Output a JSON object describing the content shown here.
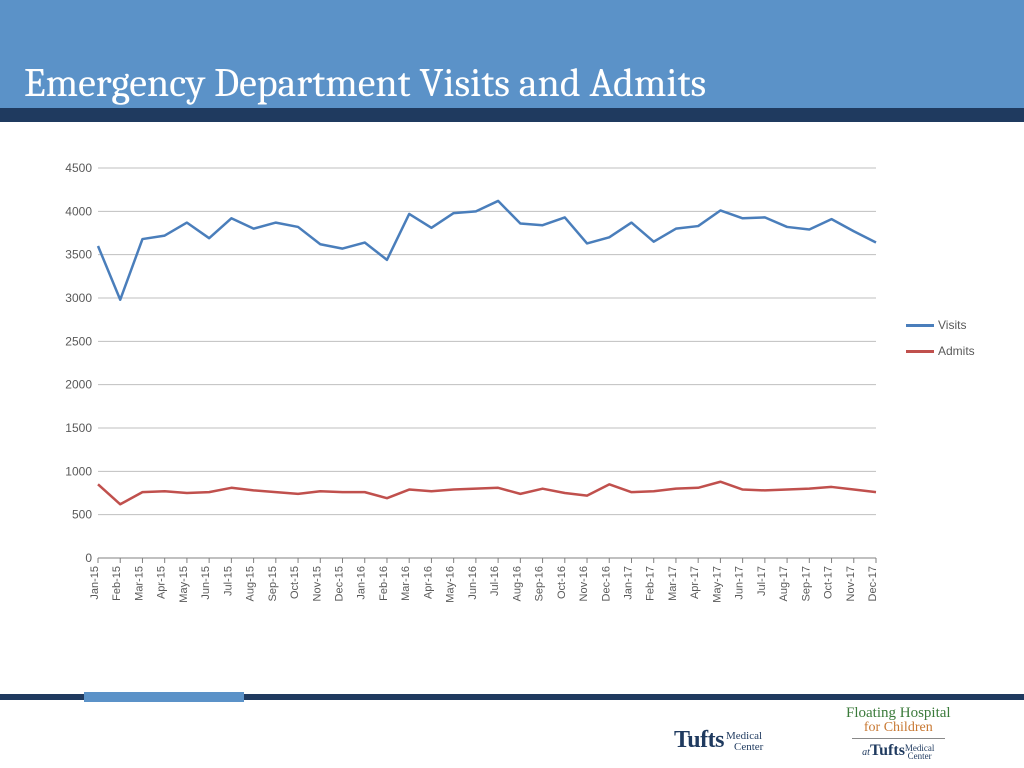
{
  "title": "Emergency Department Visits and Admits",
  "chart": {
    "type": "line",
    "ylim": [
      0,
      4500
    ],
    "ytick_step": 500,
    "background_color": "#ffffff",
    "grid_color": "#bfbfbf",
    "line_width": 2.5,
    "tick_fontsize": 12,
    "x_categories": [
      "Jan-15",
      "Feb-15",
      "Mar-15",
      "Apr-15",
      "May-15",
      "Jun-15",
      "Jul-15",
      "Aug-15",
      "Sep-15",
      "Oct-15",
      "Nov-15",
      "Dec-15",
      "Jan-16",
      "Feb-16",
      "Mar-16",
      "Apr-16",
      "May-16",
      "Jun-16",
      "Jul-16",
      "Aug-16",
      "Sep-16",
      "Oct-16",
      "Nov-16",
      "Dec-16",
      "Jan-17",
      "Feb-17",
      "Mar-17",
      "Apr-17",
      "May-17",
      "Jun-17",
      "Jul-17",
      "Aug-17",
      "Sep-17",
      "Oct-17",
      "Nov-17",
      "Dec-17"
    ],
    "series": [
      {
        "name": "Visits",
        "color": "#4a7ebb",
        "values": [
          3600,
          2980,
          3680,
          3720,
          3870,
          3690,
          3920,
          3800,
          3870,
          3820,
          3620,
          3570,
          3640,
          3440,
          3970,
          3810,
          3980,
          4000,
          4120,
          3860,
          3840,
          3930,
          3630,
          3700,
          3870,
          3650,
          3800,
          3830,
          4010,
          3920,
          3930,
          3820,
          3790,
          3910,
          3770,
          3640
        ]
      },
      {
        "name": "Admits",
        "color": "#c0504d",
        "values": [
          850,
          620,
          760,
          770,
          750,
          760,
          810,
          780,
          760,
          740,
          770,
          760,
          760,
          690,
          790,
          770,
          790,
          800,
          810,
          740,
          800,
          750,
          720,
          850,
          760,
          770,
          800,
          810,
          880,
          790,
          780,
          790,
          800,
          820,
          790,
          760
        ]
      }
    ]
  },
  "legend": {
    "items": [
      {
        "label": "Visits",
        "color": "#4a7ebb"
      },
      {
        "label": "Admits",
        "color": "#c0504d"
      }
    ]
  },
  "footer": {
    "logo1_big": "Tufts",
    "logo1_line1": "Medical",
    "logo1_line2": "Center",
    "logo2_line1": "Floating Hospital",
    "logo2_line2": "for Children",
    "logo2_at": "at",
    "logo2_tufts": "Tufts",
    "logo2_mc1": "Medical",
    "logo2_mc2": "Center"
  },
  "colors": {
    "banner": "#5b92c8",
    "underline": "#1f3a5f"
  }
}
